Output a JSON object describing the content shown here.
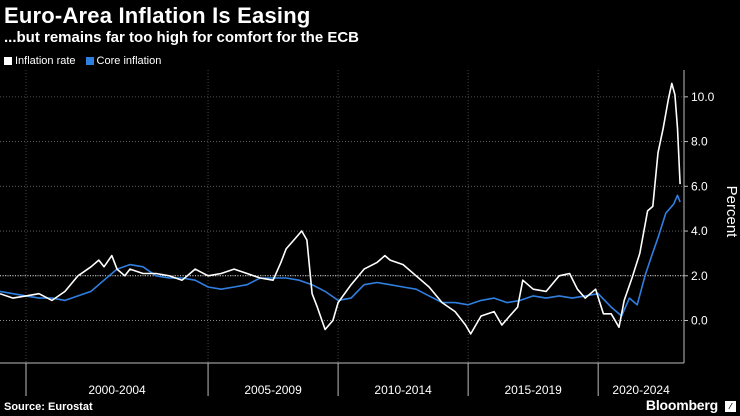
{
  "title": "Euro-Area Inflation Is Easing",
  "subtitle": "...but remains far too high for comfort for the ECB",
  "source": "Source: Eurostat",
  "brand": "Bloomberg",
  "colors": {
    "background": "#000000",
    "inflation": "#ffffff",
    "core": "#2f7fe0",
    "grid": "#888888"
  },
  "chart_data": {
    "type": "line",
    "title": "Euro-Area Inflation Is Easing",
    "subtitle": "...but remains far too high for comfort for the ECB",
    "ylabel": "Percent",
    "xlabel": "",
    "xlim": [
      1997.0,
      2023.3
    ],
    "ylim": [
      -1.9,
      11.2
    ],
    "yticks": [
      0,
      2,
      4,
      6,
      8,
      10
    ],
    "ytick_labels": [
      "0.0",
      "2.0",
      "4.0",
      "6.0",
      "8.0",
      "10.0"
    ],
    "x_group_dividers": [
      1998,
      2005,
      2010,
      2015,
      2020
    ],
    "x_groups": [
      {
        "label": "2000-2004",
        "start": 1998,
        "end": 2005
      },
      {
        "label": "2005-2009",
        "start": 2005,
        "end": 2010
      },
      {
        "label": "2010-2014",
        "start": 2010,
        "end": 2015
      },
      {
        "label": "2015-2019",
        "start": 2015,
        "end": 2020
      },
      {
        "label": "2020-2024",
        "start": 2020,
        "end": 2023.3
      }
    ],
    "legend_position": "top-left",
    "series": [
      {
        "name": "Inflation rate",
        "color": "#ffffff",
        "x": [
          1997.0,
          1997.5,
          1998.0,
          1998.5,
          1999.0,
          1999.5,
          2000.0,
          2000.5,
          2000.8,
          2001.0,
          2001.3,
          2001.5,
          2001.8,
          2002.0,
          2002.5,
          2003.0,
          2003.5,
          2004.0,
          2004.5,
          2005.0,
          2005.5,
          2006.0,
          2006.5,
          2007.0,
          2007.5,
          2007.8,
          2008.0,
          2008.3,
          2008.6,
          2008.8,
          2009.0,
          2009.2,
          2009.5,
          2009.8,
          2010.0,
          2010.5,
          2011.0,
          2011.5,
          2011.8,
          2012.0,
          2012.5,
          2013.0,
          2013.5,
          2014.0,
          2014.5,
          2014.9,
          2015.1,
          2015.5,
          2016.0,
          2016.3,
          2016.6,
          2016.9,
          2017.1,
          2017.5,
          2018.0,
          2018.5,
          2018.9,
          2019.2,
          2019.5,
          2019.9,
          2020.2,
          2020.5,
          2020.8,
          2021.0,
          2021.3,
          2021.6,
          2021.9,
          2022.1,
          2022.3,
          2022.5,
          2022.7,
          2022.83,
          2022.95,
          2023.05,
          2023.15
        ],
        "values": [
          1.2,
          1.0,
          1.1,
          1.2,
          0.9,
          1.3,
          2.0,
          2.4,
          2.7,
          2.4,
          2.9,
          2.3,
          2.0,
          2.3,
          2.1,
          2.1,
          2.0,
          1.8,
          2.3,
          2.0,
          2.1,
          2.3,
          2.1,
          1.9,
          1.8,
          2.6,
          3.2,
          3.6,
          4.0,
          3.6,
          1.2,
          0.6,
          -0.4,
          0.0,
          0.8,
          1.6,
          2.3,
          2.6,
          2.9,
          2.7,
          2.5,
          2.0,
          1.5,
          0.8,
          0.4,
          -0.2,
          -0.6,
          0.2,
          0.4,
          -0.2,
          0.2,
          0.6,
          1.8,
          1.4,
          1.3,
          2.0,
          2.1,
          1.4,
          1.0,
          1.4,
          0.3,
          0.3,
          -0.3,
          0.9,
          1.9,
          3.0,
          4.9,
          5.1,
          7.5,
          8.6,
          9.9,
          10.6,
          10.1,
          8.6,
          6.1
        ],
        "label": "Inflation rate"
      },
      {
        "name": "Core inflation",
        "color": "#2f7fe0",
        "x": [
          1997.0,
          1997.5,
          1998.0,
          1998.5,
          1999.0,
          1999.5,
          2000.0,
          2000.5,
          2001.0,
          2001.5,
          2002.0,
          2002.5,
          2003.0,
          2003.5,
          2004.0,
          2004.5,
          2005.0,
          2005.5,
          2006.0,
          2006.5,
          2007.0,
          2007.5,
          2008.0,
          2008.5,
          2009.0,
          2009.5,
          2010.0,
          2010.5,
          2011.0,
          2011.5,
          2012.0,
          2012.5,
          2013.0,
          2013.5,
          2014.0,
          2014.5,
          2015.0,
          2015.5,
          2016.0,
          2016.5,
          2017.0,
          2017.5,
          2018.0,
          2018.5,
          2019.0,
          2019.5,
          2020.0,
          2020.5,
          2020.9,
          2021.2,
          2021.5,
          2021.8,
          2022.0,
          2022.3,
          2022.6,
          2022.9,
          2023.05,
          2023.15
        ],
        "values": [
          1.3,
          1.2,
          1.1,
          1.0,
          1.0,
          0.9,
          1.1,
          1.3,
          1.8,
          2.3,
          2.5,
          2.4,
          2.0,
          1.9,
          1.9,
          1.8,
          1.5,
          1.4,
          1.5,
          1.6,
          1.9,
          1.9,
          1.9,
          1.8,
          1.6,
          1.3,
          0.9,
          1.0,
          1.6,
          1.7,
          1.6,
          1.5,
          1.4,
          1.1,
          0.8,
          0.8,
          0.7,
          0.9,
          1.0,
          0.8,
          0.9,
          1.1,
          1.0,
          1.1,
          1.0,
          1.1,
          1.2,
          0.6,
          0.2,
          1.0,
          0.7,
          2.0,
          2.7,
          3.7,
          4.8,
          5.2,
          5.6,
          5.3
        ],
        "label": "Core inflation"
      }
    ]
  }
}
